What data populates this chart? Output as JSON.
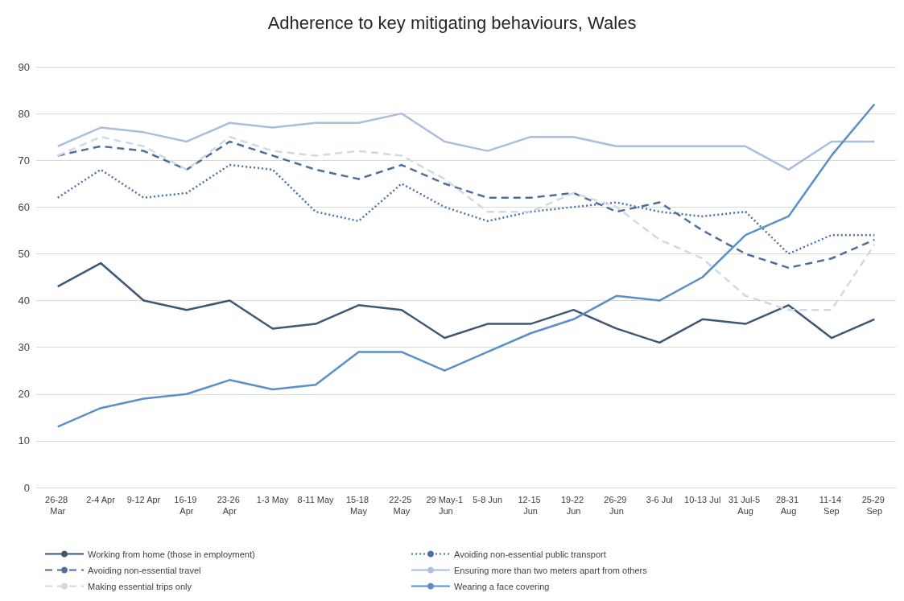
{
  "chart_data": {
    "type": "line",
    "title": "Adherence to key mitigating behaviours, Wales",
    "categories": [
      "26-28 Mar",
      "2-4 Apr",
      "9-12 Apr",
      "16-19 Apr",
      "23-26 Apr",
      "1-3 May",
      "8-11 May",
      "15-18 May",
      "22-25 May",
      "29 May-1 Jun",
      "5-8 Jun",
      "12-15 Jun",
      "19-22 Jun",
      "26-29 Jun",
      "3-6 Jul",
      "10-13 Jul",
      "31 Jul-5 Aug",
      "28-31 Aug",
      "11-14 Sep",
      "25-29 Sep"
    ],
    "ylim": [
      0,
      90
    ],
    "yticks": [
      0,
      10,
      20,
      30,
      40,
      50,
      60,
      70,
      80,
      90
    ],
    "grid": "y",
    "legend": "bottom",
    "marker": "none",
    "series": [
      {
        "name": "Working from home (those in employment)",
        "color": "#3d5775",
        "line_style": "solid",
        "values": [
          43,
          48,
          40,
          38,
          40,
          34,
          35,
          39,
          38,
          32,
          35,
          35,
          38,
          34,
          31,
          36,
          35,
          39,
          32,
          36
        ]
      },
      {
        "name": "Avoiding non-essential public transport",
        "color": "#4a72a8",
        "line_style": "dotted",
        "values": [
          62,
          68,
          62,
          63,
          69,
          68,
          59,
          57,
          65,
          60,
          57,
          59,
          60,
          61,
          59,
          58,
          59,
          50,
          54,
          54
        ]
      },
      {
        "name": "Avoiding non-essential travel",
        "color": "#4f6f9a",
        "line_style": "dashed",
        "values": [
          71,
          73,
          72,
          68,
          74,
          71,
          68,
          66,
          69,
          65,
          62,
          62,
          63,
          59,
          61,
          55,
          50,
          47,
          49,
          53
        ]
      },
      {
        "name": "Ensuring more than two meters apart from others",
        "color": "#a9bfdc",
        "line_style": "solid",
        "values": [
          73,
          77,
          76,
          74,
          78,
          77,
          78,
          78,
          80,
          74,
          72,
          75,
          75,
          73,
          73,
          73,
          73,
          68,
          74,
          74
        ]
      },
      {
        "name": "Making essential trips only",
        "color": "#d0d8e6",
        "line_style": "dashed",
        "values": [
          71,
          75,
          73,
          68,
          75,
          72,
          71,
          72,
          71,
          66,
          59,
          59,
          63,
          60,
          53,
          49,
          41,
          38,
          38,
          52
        ]
      },
      {
        "name": "Wearing a face covering",
        "color": "#5b8fc7",
        "line_style": "solid",
        "values": [
          13,
          17,
          19,
          20,
          23,
          21,
          22,
          29,
          29,
          25,
          29,
          33,
          36,
          41,
          40,
          45,
          54,
          58,
          71,
          82
        ]
      }
    ]
  }
}
